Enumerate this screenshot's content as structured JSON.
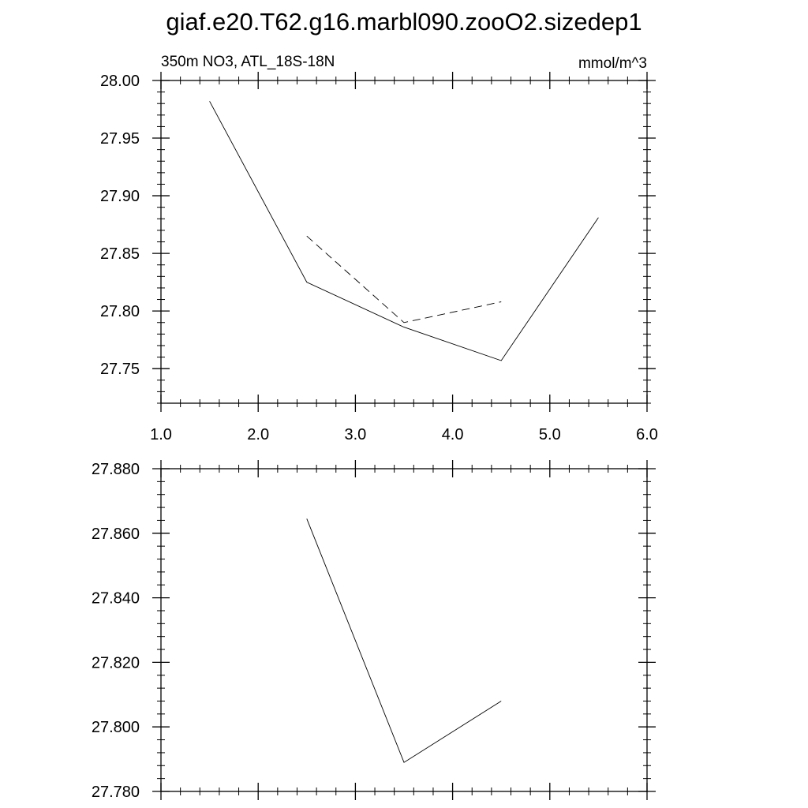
{
  "title": "giaf.e20.T62.g16.marbl090.zooO2.sizedep1",
  "chart_data": [
    {
      "type": "line",
      "left_label": "350m NO3, ATL_18S-18N",
      "right_label": "mmol/m^3",
      "xlim": [
        1.0,
        6.0
      ],
      "ylim": [
        27.72,
        28.0
      ],
      "x_tick_labels": [
        "1.0",
        "2.0",
        "3.0",
        "4.0",
        "5.0",
        "6.0"
      ],
      "y_tick_labels": [
        "28.00",
        "27.95",
        "27.90",
        "27.85",
        "27.80",
        "27.75"
      ],
      "x_ticks": [
        1.0,
        2.0,
        3.0,
        4.0,
        5.0,
        6.0
      ],
      "y_ticks": [
        28.0,
        27.95,
        27.9,
        27.85,
        27.8,
        27.75
      ],
      "grid": false,
      "series": [
        {
          "style": "solid",
          "x": [
            1.5,
            2.5,
            3.5,
            4.5,
            5.5
          ],
          "y": [
            27.982,
            27.825,
            27.786,
            27.757,
            27.881
          ]
        },
        {
          "style": "dashed",
          "x": [
            2.5,
            3.5,
            4.5
          ],
          "y": [
            27.865,
            27.79,
            27.808
          ]
        }
      ]
    },
    {
      "type": "line",
      "xlim": [
        1.0,
        6.0
      ],
      "ylim": [
        27.78,
        27.88
      ],
      "y_tick_labels": [
        "27.880",
        "27.860",
        "27.840",
        "27.820",
        "27.800",
        "27.780"
      ],
      "x_ticks": [
        1.0,
        2.0,
        3.0,
        4.0,
        5.0,
        6.0
      ],
      "y_ticks": [
        27.88,
        27.86,
        27.84,
        27.82,
        27.8,
        27.78
      ],
      "grid": false,
      "series": [
        {
          "style": "solid",
          "x": [
            2.5,
            3.5,
            4.5
          ],
          "y": [
            27.8645,
            27.789,
            27.808
          ]
        }
      ]
    }
  ]
}
